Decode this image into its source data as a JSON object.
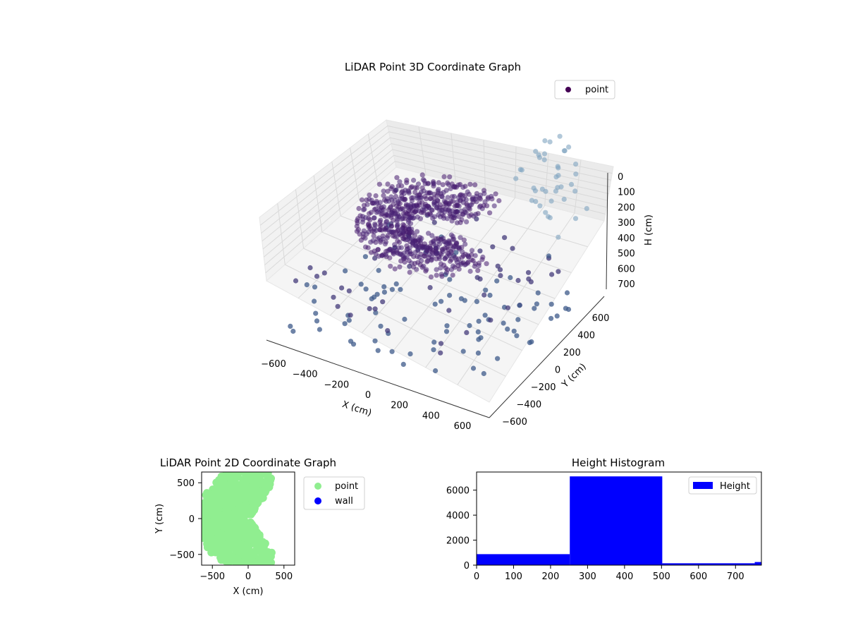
{
  "chart_data": [
    {
      "type": "scatter",
      "projection": "3d",
      "title": "LiDAR Point 3D Coordinate Graph",
      "xlabel": "X (cm)",
      "ylabel": "Y (cm)",
      "zlabel": "H (cm)",
      "xticks": [
        "−600",
        "−400",
        "−200",
        "0",
        "200",
        "400",
        "600"
      ],
      "yticks": [
        "−600",
        "−400",
        "−200",
        "0",
        "200",
        "400",
        "600"
      ],
      "zticks": [
        "0",
        "100",
        "200",
        "300",
        "400",
        "500",
        "600",
        "700"
      ],
      "xlim": [
        -700,
        700
      ],
      "ylim": [
        -700,
        700
      ],
      "zlim": [
        750,
        0
      ],
      "z_axis_inverted": true,
      "series": [
        {
          "name": "point",
          "color": "#440154"
        }
      ],
      "colormap": "viridis",
      "legend": "top-right",
      "grid": true,
      "note_points": "dense ring of points (radius ~150–450 cm) concentrated at H ~300–350 cm, open toward +X; sparse scattered points at other heights"
    },
    {
      "type": "scatter",
      "title": "LiDAR Point 2D Coordinate Graph",
      "xlabel": "X (cm)",
      "ylabel": "Y (cm)",
      "xticks": [
        "−500",
        "0",
        "500"
      ],
      "yticks": [
        "−500",
        "0",
        "500"
      ],
      "xlim": [
        -650,
        650
      ],
      "ylim": [
        -650,
        650
      ],
      "series": [
        {
          "name": "point",
          "color": "#90ee90"
        },
        {
          "name": "wall",
          "color": "#0000ff"
        }
      ],
      "legend": "outside-right",
      "grid": false
    },
    {
      "type": "histogram",
      "title": "Height Histogram",
      "xticks": [
        "0",
        "100",
        "200",
        "300",
        "400",
        "500",
        "600",
        "700"
      ],
      "yticks": [
        "0",
        "2000",
        "4000",
        "6000"
      ],
      "xlim": [
        0,
        770
      ],
      "ylim": [
        0,
        7450
      ],
      "bins": [
        {
          "x0": 0,
          "x1": 252,
          "count": 880
        },
        {
          "x0": 252,
          "x1": 502,
          "count": 7100
        },
        {
          "x0": 502,
          "x1": 752,
          "count": 150
        },
        {
          "x0": 752,
          "x1": 770,
          "count": 250
        }
      ],
      "series": [
        {
          "name": "Height",
          "color": "#0000ff"
        }
      ],
      "legend": "top-right",
      "grid": false
    }
  ]
}
